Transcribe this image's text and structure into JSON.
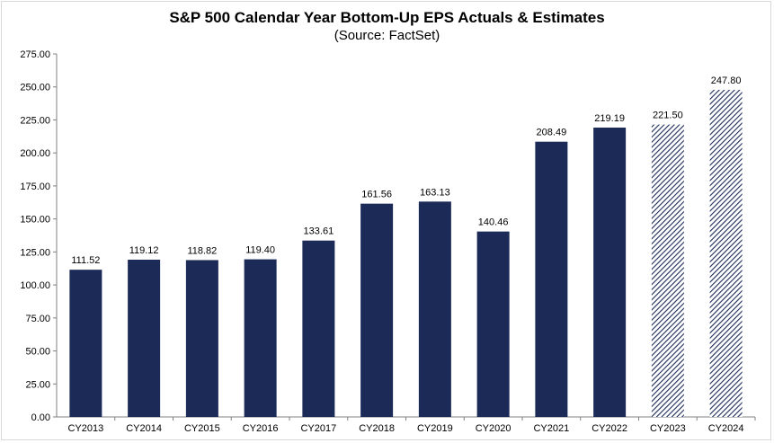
{
  "chart_data": {
    "type": "bar",
    "title": "S&P 500 Calendar Year Bottom-Up EPS Actuals & Estimates",
    "subtitle": "(Source: FactSet)",
    "xlabel": "",
    "ylabel": "",
    "categories": [
      "CY2013",
      "CY2014",
      "CY2015",
      "CY2016",
      "CY2017",
      "CY2018",
      "CY2019",
      "CY2020",
      "CY2021",
      "CY2022",
      "CY2023",
      "CY2024"
    ],
    "values": [
      111.52,
      119.12,
      118.82,
      119.4,
      133.61,
      161.56,
      163.13,
      140.46,
      208.49,
      219.19,
      221.5,
      247.8
    ],
    "value_labels": [
      "111.52",
      "119.12",
      "118.82",
      "119.40",
      "133.61",
      "161.56",
      "163.13",
      "140.46",
      "208.49",
      "219.19",
      "221.50",
      "247.80"
    ],
    "bar_style": [
      "solid",
      "solid",
      "solid",
      "solid",
      "solid",
      "solid",
      "solid",
      "solid",
      "solid",
      "solid",
      "hatched",
      "hatched"
    ],
    "ylim": [
      0,
      275
    ],
    "yticks": [
      "0.00",
      "25.00",
      "50.00",
      "75.00",
      "100.00",
      "125.00",
      "150.00",
      "175.00",
      "200.00",
      "225.00",
      "250.00",
      "275.00"
    ],
    "grid": false,
    "legend": "none",
    "colors": {
      "bar": "#1b2a57",
      "axis": "#808080",
      "text": "#000000"
    }
  }
}
